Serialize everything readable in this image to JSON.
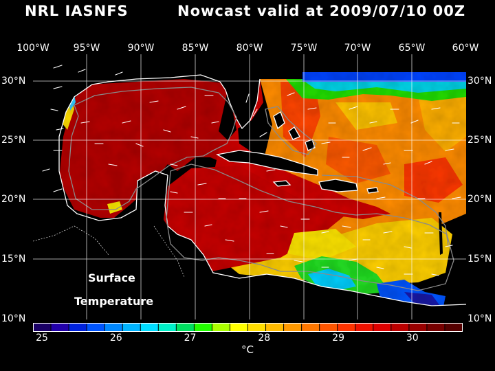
{
  "header": {
    "left": "NRL IASNFS",
    "center": "Nowcast",
    "right": "valid at 2009/07/10 00Z"
  },
  "axes": {
    "longitude_labels": [
      "100°W",
      "95°W",
      "90°W",
      "85°W",
      "80°W",
      "75°W",
      "70°W",
      "65°W",
      "60°W"
    ],
    "latitude_labels": [
      "30°N",
      "25°N",
      "20°N",
      "15°N",
      "10°N"
    ],
    "lon_range": [
      -100,
      -60
    ],
    "lat_range": [
      10,
      32
    ]
  },
  "map": {
    "label_line1": "Surface",
    "label_line2": "Temperature",
    "variable": "sea surface temperature",
    "region": "Gulf of Mexico / Caribbean / western Atlantic",
    "land_color": "#000000",
    "gridlines": true
  },
  "colorbar": {
    "min": 25,
    "max": 30.8,
    "tick_labels": [
      "25",
      "26",
      "27",
      "28",
      "29",
      "30"
    ],
    "unit": "°C",
    "colors": [
      "#1a0066",
      "#2200aa",
      "#0022dd",
      "#0055ff",
      "#0088ff",
      "#00b4ff",
      "#00ddff",
      "#00f0c8",
      "#00e060",
      "#22ff00",
      "#aaff00",
      "#ffff00",
      "#ffdd00",
      "#ffbb00",
      "#ff9900",
      "#ff7700",
      "#ff5500",
      "#ff3300",
      "#ee1100",
      "#dd0000",
      "#bb0000",
      "#990000",
      "#770000",
      "#550000"
    ]
  }
}
